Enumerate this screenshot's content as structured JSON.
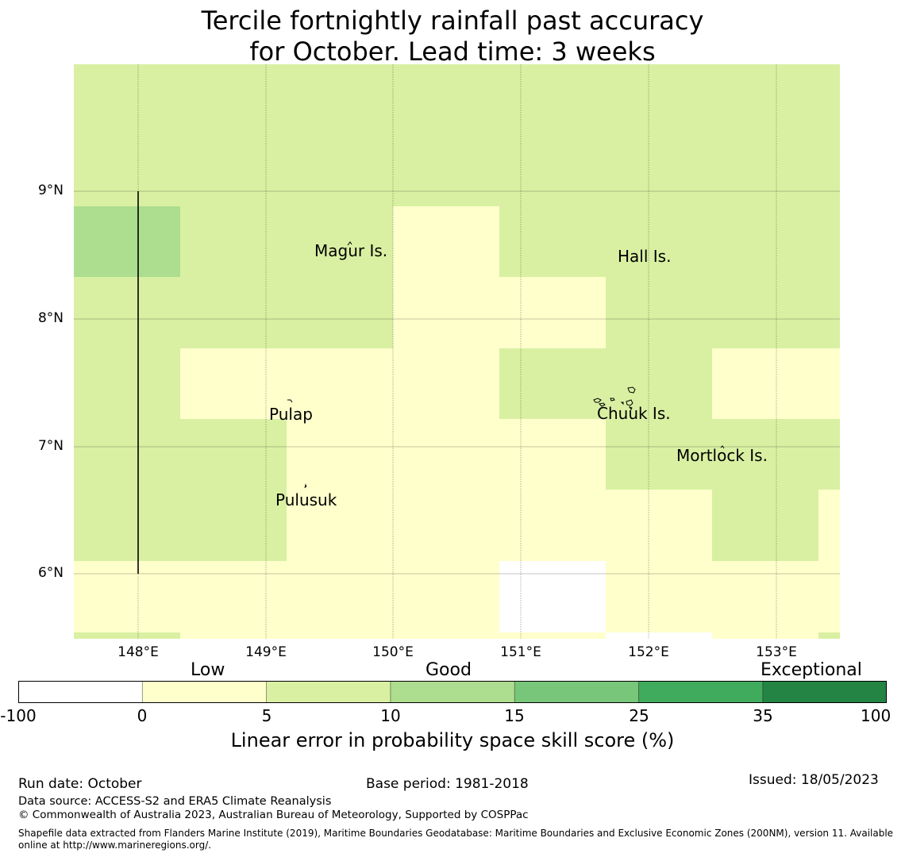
{
  "title": {
    "line1": "Tercile fortnightly rainfall past accuracy",
    "line2": "for October. Lead time: 3 weeks"
  },
  "map": {
    "lat_ticks": [
      "9°N",
      "8°N",
      "7°N",
      "6°N"
    ],
    "lon_ticks": [
      "148°E",
      "149°E",
      "150°E",
      "151°E",
      "152°E",
      "153°E"
    ],
    "islands": {
      "magur": "Magur Is.",
      "hall": "Hall Is.",
      "pulap": "Pulap",
      "chuuk": "Chuuk Is.",
      "mortlock": "Mortlock Is.",
      "pulusuk": "Pulusuk"
    },
    "colors": {
      "below_0": "#ffffff",
      "0_5": "#ffffcc",
      "5_10": "#d9f0a3",
      "10_15": "#addd8e",
      "15_25": "#78c679",
      "25_35": "#41ab5d",
      "35_100": "#238443"
    }
  },
  "colorbar": {
    "categories": [
      "Low",
      "Good",
      "Exceptional"
    ],
    "ticks": [
      "-100",
      "0",
      "5",
      "10",
      "15",
      "25",
      "35",
      "100"
    ],
    "colors": [
      "#ffffff",
      "#ffffcc",
      "#d9f0a3",
      "#addd8e",
      "#78c679",
      "#41ab5d",
      "#238443"
    ],
    "label": "Linear error in probability space skill score (%)"
  },
  "footer": {
    "run_date": "Run date: October",
    "base_period": "Base period: 1981-2018",
    "issued": "Issued: 18/05/2023",
    "data_source": "Data source: ACCESS-S2 and ERA5 Climate Reanalysis",
    "copyright": "© Commonwealth of Australia 2023, Australian Bureau of Meteorology, Supported by COSPPac",
    "shapefile": "Shapefile data extracted from Flanders Marine Institute (2019), Maritime Boundaries Geodatabase: Maritime Boundaries and Exclusive Economic Zones (200NM), version 11. Available online at http://www.marineregions.org/."
  }
}
